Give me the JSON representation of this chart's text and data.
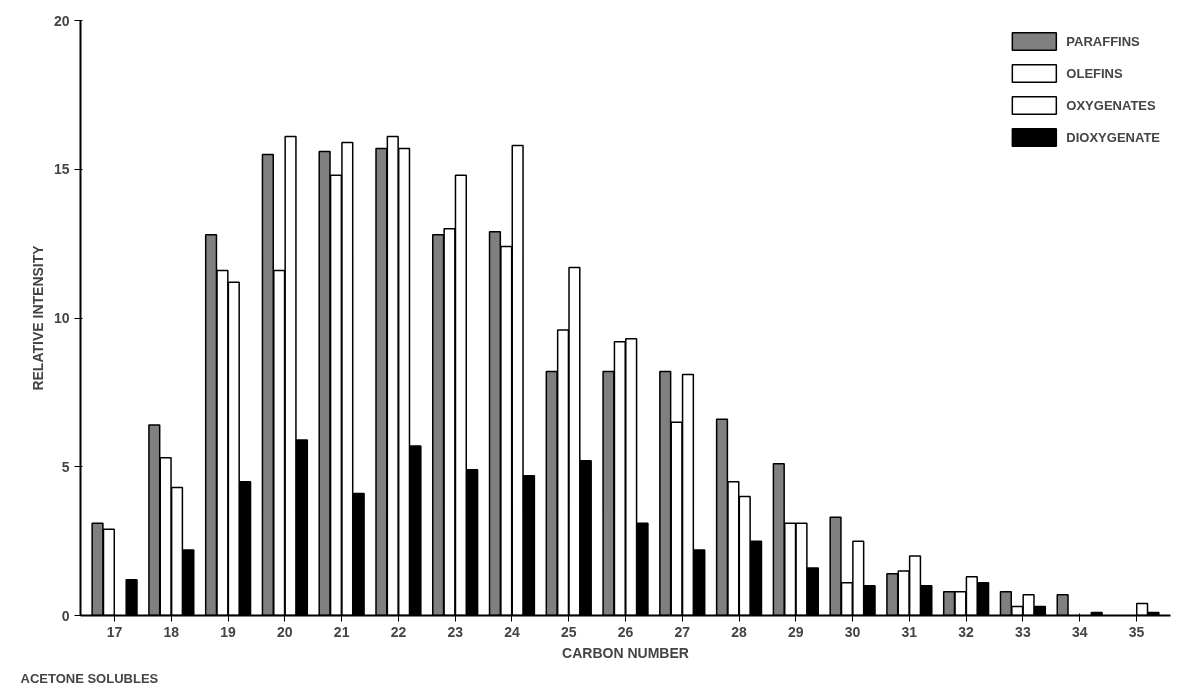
{
  "chart_data": {
    "type": "bar",
    "xlabel": "CARBON NUMBER",
    "ylabel": "RELATIVE INTENSITY",
    "annotations": [
      "ACETONE SOLUBLES"
    ],
    "categories": [
      "17",
      "18",
      "19",
      "20",
      "21",
      "22",
      "23",
      "24",
      "25",
      "26",
      "27",
      "28",
      "29",
      "30",
      "31",
      "32",
      "33",
      "34",
      "35"
    ],
    "series": [
      {
        "name": "PARAFFINS",
        "color": "#808080",
        "values": [
          3.1,
          6.4,
          12.8,
          15.5,
          15.6,
          15.7,
          12.8,
          12.9,
          8.2,
          8.2,
          8.2,
          6.6,
          5.1,
          3.3,
          1.4,
          0.8,
          0.8,
          0.7,
          null
        ]
      },
      {
        "name": "OLEFINS",
        "color": "#ffffff",
        "values": [
          2.9,
          5.3,
          11.6,
          11.6,
          14.8,
          16.1,
          13.0,
          12.4,
          9.6,
          9.2,
          6.5,
          4.5,
          3.1,
          1.1,
          1.5,
          0.8,
          0.3,
          null,
          null
        ]
      },
      {
        "name": "OXYGENATES",
        "color": "#ffffff",
        "values": [
          null,
          4.3,
          11.2,
          16.1,
          15.9,
          15.7,
          14.8,
          15.8,
          11.7,
          9.3,
          8.1,
          4.0,
          3.1,
          2.5,
          2.0,
          1.3,
          0.7,
          null,
          0.4
        ]
      },
      {
        "name": "DIOXYGENATE",
        "color": "#000000",
        "values": [
          1.2,
          2.2,
          4.5,
          5.9,
          4.1,
          5.7,
          4.9,
          4.7,
          5.2,
          3.1,
          2.2,
          2.5,
          1.6,
          1.0,
          1.0,
          1.1,
          0.3,
          0.1,
          0.1
        ]
      }
    ],
    "ylim": [
      0,
      20
    ],
    "yticks": [
      0,
      5,
      10,
      15,
      20
    ],
    "grid": false,
    "legend": "top right"
  }
}
